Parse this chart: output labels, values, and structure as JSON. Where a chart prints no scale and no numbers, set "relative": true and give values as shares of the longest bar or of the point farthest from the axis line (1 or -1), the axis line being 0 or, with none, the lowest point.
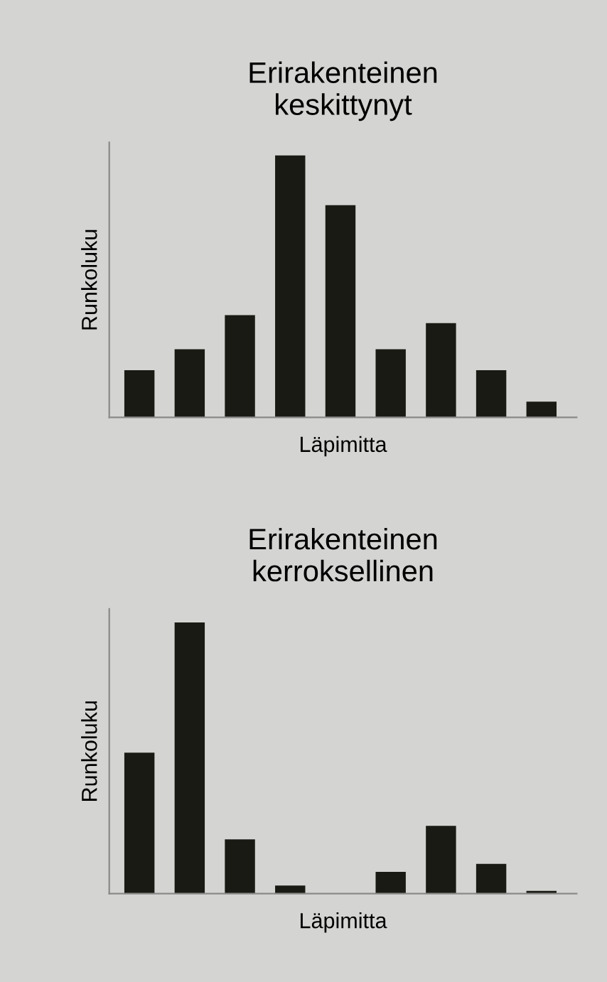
{
  "chart_data": [
    {
      "type": "bar",
      "title": "Erirakenteinen\nkeskittynyt",
      "xlabel": "Läpimitta",
      "ylabel": "Runkoluku",
      "relative": true,
      "categories": [
        null,
        null,
        null,
        null,
        null,
        null,
        null,
        null,
        null
      ],
      "color": "#1a1a14",
      "values": [
        0.18,
        0.26,
        0.39,
        1,
        0.81,
        0.26,
        0.36,
        0.18,
        0.06
      ]
    },
    {
      "type": "bar",
      "title": "Erirakenteinen\nkerroksellinen",
      "xlabel": "Läpimitta",
      "ylabel": "Runkoluku",
      "relative": true,
      "categories": [
        null,
        null,
        null,
        null,
        null,
        null,
        null,
        null,
        null
      ],
      "color": "#1a1a14",
      "values": [
        0.52,
        1,
        0.2,
        0.03,
        0,
        0.08,
        0.25,
        0.11,
        0.01
      ]
    }
  ]
}
